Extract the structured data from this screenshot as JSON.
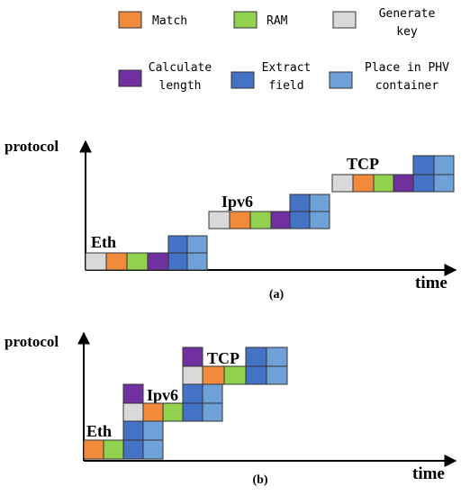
{
  "colors": {
    "match": "#f28a3c",
    "ram": "#92d050",
    "generate_key": "#d9d9d9",
    "calculate_length": "#7030a0",
    "extract_field": "#4472c4",
    "place_in_phv": "#6fa0d8"
  },
  "legend": [
    {
      "key": "match",
      "lines": [
        "Match"
      ]
    },
    {
      "key": "ram",
      "lines": [
        "RAM"
      ]
    },
    {
      "key": "generate_key",
      "lines": [
        "Generate",
        "key"
      ]
    },
    {
      "key": "calculate_length",
      "lines": [
        "Calculate",
        "length"
      ]
    },
    {
      "key": "extract_field",
      "lines": [
        "Extract",
        "field"
      ]
    },
    {
      "key": "place_in_phv",
      "lines": [
        "Place in PHV",
        "container"
      ]
    }
  ],
  "diagram_a": {
    "ylabel": "protocol",
    "xlabel": "time",
    "caption": "(a)",
    "protocols": [
      "Eth",
      "Ipv6",
      "TCP"
    ]
  },
  "diagram_b": {
    "ylabel": "protocol",
    "xlabel": "time",
    "caption": "(b)",
    "protocols": [
      "Eth",
      "Ipv6",
      "TCP"
    ]
  }
}
